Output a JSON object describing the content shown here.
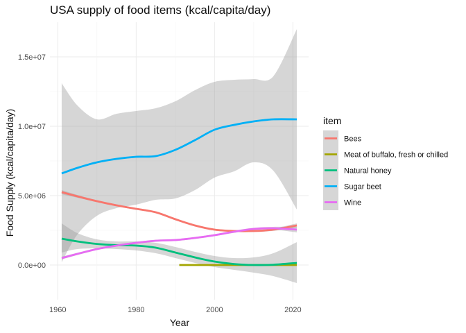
{
  "chart_data": {
    "type": "line",
    "title": "USA supply of food items (kcal/capita/day)",
    "xlabel": "Year",
    "ylabel": "Food Supply (kcal/capita/day)",
    "xlim": [
      1958,
      2024
    ],
    "ylim": [
      -2500000,
      17500000
    ],
    "x_ticks": [
      1960,
      1980,
      2000,
      2020
    ],
    "x_tick_labels": [
      "1960",
      "1980",
      "2000",
      "2020"
    ],
    "y_ticks": [
      0,
      5000000,
      10000000,
      15000000
    ],
    "y_tick_labels": [
      "0.0e+00",
      "5.0e+06",
      "1.0e+07",
      "1.5e+07"
    ],
    "grid": true,
    "smoothed": true,
    "confidence_bands": true,
    "legend": {
      "title": "item",
      "placement": "right"
    },
    "series": [
      {
        "name": "Bees",
        "color": "#F8766D",
        "x": [
          1961,
          1965,
          1970,
          1975,
          1980,
          1985,
          1990,
          1995,
          2000,
          2005,
          2010,
          2015,
          2021
        ],
        "y": [
          5250000,
          4950000,
          4600000,
          4300000,
          4050000,
          3800000,
          3300000,
          2850000,
          2550000,
          2450000,
          2450000,
          2550000,
          2850000
        ],
        "band_lower": [
          5100000,
          4850000,
          4530000,
          4230000,
          3980000,
          3730000,
          3230000,
          2780000,
          2480000,
          2380000,
          2380000,
          2460000,
          2700000
        ],
        "band_upper": [
          5400000,
          5050000,
          4670000,
          4370000,
          4120000,
          3870000,
          3370000,
          2920000,
          2620000,
          2520000,
          2520000,
          2640000,
          3000000
        ]
      },
      {
        "name": "Meat of buffalo, fresh or chilled",
        "color": "#A3A500",
        "x": [
          1991,
          2000,
          2010,
          2021
        ],
        "y": [
          0,
          0,
          0,
          0
        ]
      },
      {
        "name": "Natural honey",
        "color": "#00BF7D",
        "x": [
          1961,
          1965,
          1970,
          1975,
          1980,
          1985,
          1990,
          1995,
          2000,
          2005,
          2010,
          2015,
          2021
        ],
        "y": [
          1900000,
          1700000,
          1520000,
          1430000,
          1400000,
          1250000,
          900000,
          550000,
          250000,
          70000,
          0,
          20000,
          150000
        ],
        "band_lower": [
          900000,
          1150000,
          1200000,
          1150000,
          1050000,
          850000,
          500000,
          150000,
          -150000,
          -350000,
          -550000,
          -800000,
          -1300000
        ],
        "band_upper": [
          3000000,
          2300000,
          1850000,
          1700000,
          1700000,
          1600000,
          1300000,
          950000,
          650000,
          500000,
          550000,
          850000,
          1650000
        ]
      },
      {
        "name": "Sugar beet",
        "color": "#00B0F6",
        "x": [
          1961,
          1965,
          1970,
          1975,
          1980,
          1985,
          1990,
          1995,
          2000,
          2005,
          2010,
          2015,
          2021
        ],
        "y": [
          6600000,
          7000000,
          7400000,
          7650000,
          7800000,
          7850000,
          8300000,
          9000000,
          9750000,
          10100000,
          10350000,
          10500000,
          10500000
        ],
        "band_lower": [
          200000,
          2200000,
          3550000,
          4100000,
          4350000,
          4700000,
          4800000,
          5400000,
          6300000,
          6750000,
          7400000,
          6800000,
          4000000
        ],
        "band_upper": [
          13100000,
          11500000,
          10500000,
          10900000,
          11100000,
          11300000,
          11800000,
          12600000,
          13200000,
          13350000,
          13400000,
          13600000,
          17000000
        ]
      },
      {
        "name": "Wine",
        "color": "#E76BF3",
        "x": [
          1961,
          1965,
          1970,
          1975,
          1980,
          1985,
          1990,
          1995,
          2000,
          2005,
          2010,
          2015,
          2021
        ],
        "y": [
          500000,
          800000,
          1150000,
          1400000,
          1600000,
          1750000,
          1800000,
          1950000,
          2150000,
          2400000,
          2600000,
          2650000,
          2550000
        ],
        "band_lower": [
          400000,
          720000,
          1080000,
          1330000,
          1530000,
          1680000,
          1730000,
          1880000,
          2080000,
          2320000,
          2520000,
          2550000,
          2350000
        ],
        "band_upper": [
          600000,
          880000,
          1220000,
          1470000,
          1670000,
          1820000,
          1870000,
          2020000,
          2220000,
          2480000,
          2680000,
          2750000,
          2750000
        ]
      }
    ]
  }
}
